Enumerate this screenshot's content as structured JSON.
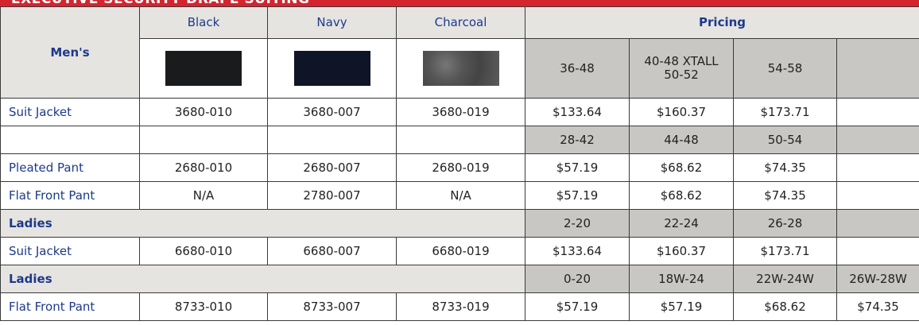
{
  "title": "EXECUTIVE SECURITY DRAPE SUITING",
  "header": {
    "label": "Men's",
    "colors": [
      "Black",
      "Navy",
      "Charcoal"
    ],
    "pricing": "Pricing",
    "sizes": [
      "36-48",
      "40-48 XTALL\n50-52",
      "54-58",
      null
    ]
  },
  "rows": [
    {
      "label": "Suit Jacket",
      "codes": [
        "3680-010",
        "3680-007",
        "3680-019"
      ],
      "prices": [
        "$133.64",
        "$160.37",
        "$173.71",
        null
      ]
    },
    {
      "sizes": [
        "28-42",
        "44-48",
        "50-54",
        null
      ]
    },
    {
      "label": "Pleated Pant",
      "codes": [
        "2680-010",
        "2680-007",
        "2680-019"
      ],
      "prices": [
        "$57.19",
        "$68.62",
        "$74.35",
        null
      ]
    },
    {
      "label": "Flat Front Pant",
      "codes": [
        "N/A",
        "2780-007",
        "N/A"
      ],
      "prices": [
        "$57.19",
        "$68.62",
        "$74.35",
        null
      ]
    },
    {
      "section": "Ladies",
      "sizes": [
        "2-20",
        "22-24",
        "26-28",
        null
      ]
    },
    {
      "label": "Suit Jacket",
      "codes": [
        "6680-010",
        "6680-007",
        "6680-019"
      ],
      "prices": [
        "$133.64",
        "$160.37",
        "$173.71",
        null
      ]
    },
    {
      "section": "Ladies",
      "sizes": [
        "0-20",
        "18W-24",
        "22W-24W",
        "26W-28W"
      ]
    },
    {
      "label": "Flat Front Pant",
      "codes": [
        "8733-010",
        "8733-007",
        "8733-019"
      ],
      "prices": [
        "$57.19",
        "$57.19",
        "$68.62",
        "$74.35"
      ]
    }
  ]
}
